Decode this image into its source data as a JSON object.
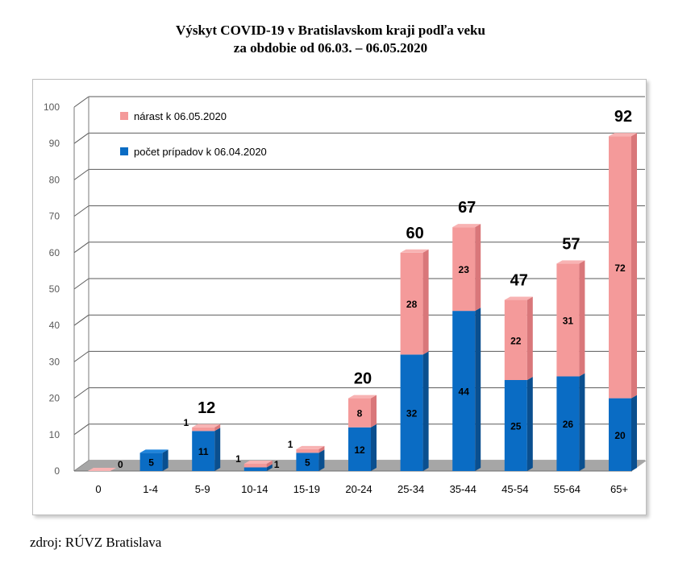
{
  "title_line1": "Výskyt COVID-19 v Bratislavskom kraji podľa veku",
  "title_line2": "za obdobie od 06.03. – 06.05.2020",
  "source": "zdroj: RÚVZ Bratislava",
  "colors": {
    "base": "#0a6cc4",
    "increase": "#f49a9a",
    "floor": "#a6a6a6"
  },
  "chart_data": {
    "type": "bar",
    "stacked": true,
    "categories": [
      "0",
      "1-4",
      "5-9",
      "10-14",
      "15-19",
      "20-24",
      "25-34",
      "35-44",
      "45-54",
      "55-64",
      "65+"
    ],
    "series": [
      {
        "name": "počet prípadov k 06.04.2020",
        "values": [
          0,
          5,
          11,
          1,
          5,
          12,
          32,
          44,
          25,
          26,
          20
        ]
      },
      {
        "name": "nárast k 06.05.2020",
        "values": [
          0,
          0,
          1,
          1,
          1,
          8,
          28,
          23,
          22,
          31,
          72
        ]
      }
    ],
    "totals": [
      0,
      5,
      12,
      2,
      6,
      20,
      60,
      67,
      47,
      57,
      92
    ],
    "increase_labels": [
      "",
      "",
      "1",
      "1",
      "1",
      "8",
      "28",
      "23",
      "22",
      "31",
      "72"
    ],
    "base_labels": [
      "0",
      "5",
      "11",
      "1",
      "5",
      "12",
      "32",
      "44",
      "25",
      "26",
      "20"
    ],
    "total_labels": [
      "",
      "",
      "12",
      "",
      "",
      "20",
      "60",
      "67",
      "47",
      "57",
      "92"
    ],
    "y_ticks": [
      0,
      10,
      20,
      30,
      40,
      50,
      60,
      70,
      80,
      90,
      100
    ],
    "ylim": [
      0,
      100
    ],
    "legend_position": "top-left",
    "grid": true
  }
}
